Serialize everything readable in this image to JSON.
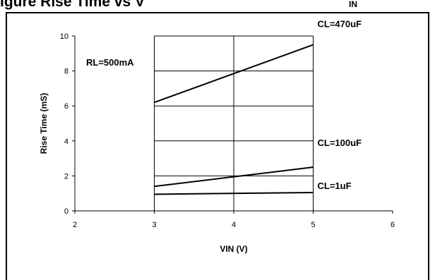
{
  "page": {
    "heading_fragment": "igure  Rise Time vs V",
    "heading_subscript": "IN"
  },
  "chart_data": {
    "type": "line",
    "title": "",
    "xlabel": "VIN (V)",
    "ylabel": "Rise Time (mS)",
    "xlim": [
      2,
      6
    ],
    "ylim": [
      0,
      10
    ],
    "x_ticks": [
      2,
      3,
      4,
      5,
      6
    ],
    "y_ticks": [
      0,
      2,
      4,
      6,
      8,
      10
    ],
    "grid": {
      "vertical_at": [
        3,
        4,
        5
      ],
      "horizontal_at": [
        2,
        4,
        6,
        8,
        10
      ]
    },
    "annotation": "RL=500mA",
    "series": [
      {
        "name": "CL=470uF",
        "x": [
          3,
          5
        ],
        "values": [
          6.2,
          9.5
        ]
      },
      {
        "name": "CL=100uF",
        "x": [
          3,
          5
        ],
        "values": [
          1.4,
          2.5
        ]
      },
      {
        "name": "CL=1uF",
        "x": [
          3,
          5
        ],
        "values": [
          0.95,
          1.05
        ]
      }
    ],
    "colors": {
      "line": "#000000",
      "grid": "#000000",
      "background": "#ffffff"
    }
  }
}
